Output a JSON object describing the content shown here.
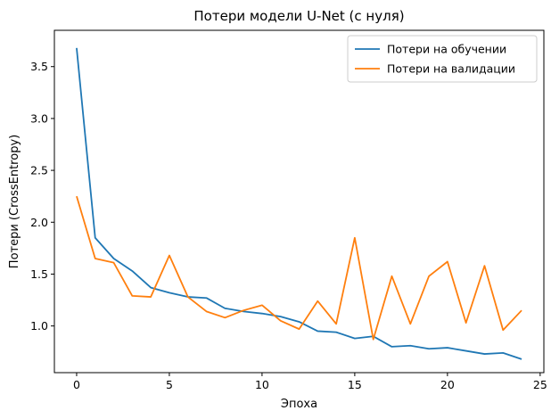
{
  "chart_data": {
    "type": "line",
    "title": "Потери модели U-Net (с нуля)",
    "xlabel": "Эпоха",
    "ylabel": "Потери (CrossEntropy)",
    "xlim": [
      -1.2,
      25.2
    ],
    "ylim": [
      0.55,
      3.85
    ],
    "xticks": [
      0,
      5,
      10,
      15,
      20,
      25
    ],
    "yticks": [
      1.0,
      1.5,
      2.0,
      2.5,
      3.0,
      3.5
    ],
    "ytick_labels": [
      "1.0",
      "1.5",
      "2.0",
      "2.5",
      "3.0",
      "3.5"
    ],
    "legend_position": "top-right",
    "grid": false,
    "x": [
      0,
      1,
      2,
      3,
      4,
      5,
      6,
      7,
      8,
      9,
      10,
      11,
      12,
      13,
      14,
      15,
      16,
      17,
      18,
      19,
      20,
      21,
      22,
      23,
      24
    ],
    "series": [
      {
        "name": "Потери на обучении",
        "color": "#1f77b4",
        "values": [
          3.68,
          1.85,
          1.65,
          1.53,
          1.37,
          1.32,
          1.28,
          1.27,
          1.17,
          1.14,
          1.12,
          1.09,
          1.04,
          0.95,
          0.94,
          0.88,
          0.9,
          0.8,
          0.81,
          0.78,
          0.79,
          0.76,
          0.73,
          0.74,
          0.68
        ]
      },
      {
        "name": "Потери на валидации",
        "color": "#ff7f0e",
        "values": [
          2.25,
          1.65,
          1.61,
          1.29,
          1.28,
          1.68,
          1.28,
          1.14,
          1.08,
          1.15,
          1.2,
          1.05,
          0.97,
          1.24,
          1.02,
          1.85,
          0.87,
          1.48,
          1.02,
          1.48,
          1.62,
          1.03,
          1.58,
          0.96,
          1.15
        ]
      }
    ]
  }
}
